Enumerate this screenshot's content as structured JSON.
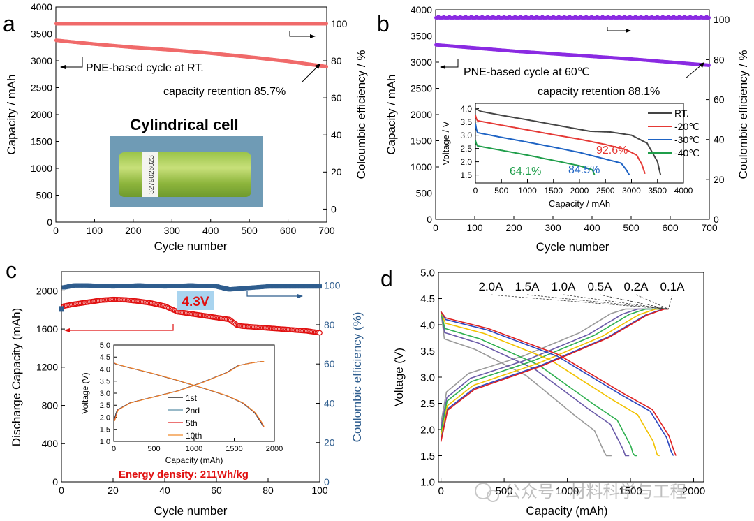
{
  "watermark": "公众号 · 材料科学与工程",
  "chart_data": [
    {
      "panel": "a",
      "type": "scatter",
      "xlabel": "Cycle number",
      "ylabel": "Capacity / mAh",
      "y2label": "Coloumbic efficiency / %",
      "xlim": [
        0,
        700
      ],
      "ylim": [
        0,
        4000
      ],
      "y2lim": [
        -7,
        109
      ],
      "xticks": [
        "0",
        "100",
        "200",
        "300",
        "400",
        "500",
        "600",
        "700"
      ],
      "yticks": [
        "0",
        "500",
        "1000",
        "1500",
        "2000",
        "2500",
        "3000",
        "3500",
        "4000"
      ],
      "y2ticks": [
        "0",
        "20",
        "40",
        "60",
        "80",
        "100"
      ],
      "series": [
        {
          "name": "Capacity",
          "axis": "left",
          "color": "#f06a6a",
          "x": [
            1,
            100,
            200,
            300,
            400,
            500,
            600,
            700
          ],
          "values": [
            3380,
            3310,
            3250,
            3200,
            3140,
            3070,
            2990,
            2890
          ]
        },
        {
          "name": "Coulombic efficiency",
          "axis": "right",
          "color": "#f06a6a",
          "x": [
            1,
            700
          ],
          "values": [
            100,
            100
          ]
        }
      ],
      "annotations": {
        "cycle_text": "PNE-based cycle at RT.",
        "retention_text": "capacity retention 85.7%",
        "inset_title": "Cylindrical cell",
        "cell_label": "3279026023"
      }
    },
    {
      "panel": "b",
      "type": "scatter",
      "xlabel": "Cycle number",
      "ylabel": "Capacity / mAh",
      "y2label": "Coulombic efficiency / %",
      "xlim": [
        0,
        700
      ],
      "ylim": [
        0,
        4000
      ],
      "y2lim": [
        0,
        105
      ],
      "xticks": [
        "0",
        "100",
        "200",
        "300",
        "400",
        "500",
        "600",
        "700"
      ],
      "yticks": [
        "0",
        "500",
        "1000",
        "1500",
        "2000",
        "2500",
        "3000",
        "3500",
        "4000"
      ],
      "y2ticks": [
        "0",
        "20",
        "40",
        "60",
        "80",
        "100"
      ],
      "series": [
        {
          "name": "Capacity",
          "axis": "left",
          "color": "#8a2be2",
          "x": [
            1,
            100,
            200,
            300,
            400,
            500,
            600,
            700
          ],
          "values": [
            3330,
            3270,
            3210,
            3160,
            3110,
            3060,
            3000,
            2940
          ]
        },
        {
          "name": "Coulombic efficiency",
          "axis": "right",
          "color": "#8a2be2",
          "x": [
            1,
            700
          ],
          "values": [
            101,
            101
          ]
        }
      ],
      "annotations": {
        "cycle_text": "PNE-based cycle at 60℃",
        "retention_text": "capacity retention 88.1%"
      },
      "inset": {
        "type": "line",
        "xlabel": "Capacity / mAh",
        "ylabel": "Voltage / V",
        "xlim": [
          0,
          4000
        ],
        "ylim": [
          1.2,
          4.2
        ],
        "xticks": [
          "0",
          "500",
          "1000",
          "1500",
          "2000",
          "2500",
          "3000",
          "3500",
          "4000"
        ],
        "yticks": [
          "1.5",
          "2.0",
          "2.5",
          "3.0",
          "3.5",
          "4.0"
        ],
        "series": [
          {
            "name": "RT.",
            "color": "#444444",
            "x": [
              0,
              100,
              500,
              1000,
              1500,
              2000,
              2200,
              2600,
              3000,
              3300,
              3500,
              3560
            ],
            "values": [
              4.0,
              3.9,
              3.75,
              3.58,
              3.4,
              3.22,
              3.15,
              3.12,
              3.0,
              2.7,
              2.0,
              1.5
            ]
          },
          {
            "name": "-20℃",
            "color": "#e53935",
            "x": [
              0,
              30,
              500,
              1000,
              1500,
              2000,
              2500,
              2900,
              3100,
              3200,
              3260
            ],
            "values": [
              3.75,
              3.55,
              3.38,
              3.2,
              3.02,
              2.85,
              2.65,
              2.45,
              2.25,
              1.9,
              1.55
            ]
          },
          {
            "name": "-30℃",
            "color": "#1e63c4",
            "x": [
              0,
              30,
              500,
              1000,
              1500,
              2000,
              2500,
              2800,
              2900,
              2960
            ],
            "values": [
              3.45,
              3.1,
              2.92,
              2.74,
              2.55,
              2.35,
              2.1,
              1.95,
              1.7,
              1.5
            ]
          },
          {
            "name": "-40℃",
            "color": "#1f9e4a",
            "x": [
              0,
              30,
              500,
              1000,
              1500,
              2000,
              2250,
              2290
            ],
            "values": [
              2.8,
              2.6,
              2.43,
              2.25,
              2.05,
              1.85,
              1.7,
              1.5
            ]
          }
        ],
        "labels": [
          "92.6%",
          "84.5%",
          "64.1%"
        ]
      }
    },
    {
      "panel": "c",
      "type": "scatter",
      "xlabel": "Cycle number",
      "ylabel": "Discharge Capacity (mAh)",
      "y2label": "Coulombic efficiency (%)",
      "xlim": [
        0,
        100
      ],
      "ylim": [
        0,
        2200
      ],
      "y2lim": [
        0,
        107
      ],
      "xticks": [
        "0",
        "20",
        "40",
        "60",
        "80",
        "100"
      ],
      "yticks": [
        "0",
        "400",
        "800",
        "1200",
        "1600",
        "2000"
      ],
      "y2ticks": [
        "0",
        "20",
        "40",
        "60",
        "80",
        "100"
      ],
      "series": [
        {
          "name": "Discharge capacity",
          "axis": "left",
          "color": "#e01010",
          "x": [
            1,
            5,
            10,
            15,
            20,
            25,
            30,
            35,
            40,
            45,
            50,
            55,
            60,
            65,
            68,
            70,
            75,
            80,
            85,
            90,
            95,
            100
          ],
          "values": [
            1840,
            1860,
            1880,
            1900,
            1910,
            1905,
            1890,
            1870,
            1840,
            1780,
            1760,
            1740,
            1720,
            1700,
            1640,
            1630,
            1620,
            1610,
            1600,
            1590,
            1580,
            1560
          ]
        },
        {
          "name": "Coulombic efficiency",
          "axis": "right",
          "color": "#2e5d8e",
          "x": [
            1,
            5,
            10,
            20,
            30,
            40,
            50,
            60,
            65,
            75,
            80,
            90,
            100
          ],
          "values": [
            99,
            100,
            100,
            99.5,
            100,
            99.5,
            100,
            99.5,
            98,
            99,
            99.5,
            99.5,
            99.5
          ]
        }
      ],
      "annotations": {
        "voltage_label": "4.3V",
        "energy_text": "Energy density: 211Wh/kg"
      },
      "inset": {
        "type": "line",
        "xlabel": "Capacity (mAh)",
        "ylabel": "Voltage (V)",
        "xlim": [
          0,
          2000
        ],
        "ylim": [
          1.0,
          5.0
        ],
        "xticks": [
          "0",
          "500",
          "1000",
          "1500",
          "2000"
        ],
        "yticks": [
          "1.0",
          "1.5",
          "2.0",
          "2.5",
          "3.0",
          "3.5",
          "4.0",
          "4.5",
          "5.0"
        ],
        "series": [
          {
            "name": "1st",
            "color": "#000000"
          },
          {
            "name": "2nd",
            "color": "#5b8fa8"
          },
          {
            "name": "5th",
            "color": "#e02020"
          },
          {
            "name": "10th",
            "color": "#f08a2a"
          }
        ],
        "charge_curve": {
          "x": [
            0,
            40,
            200,
            500,
            800,
            1100,
            1400,
            1550,
            1700,
            1800,
            1860
          ],
          "values": [
            1.85,
            2.3,
            2.6,
            2.85,
            3.1,
            3.45,
            3.85,
            4.15,
            4.25,
            4.3,
            4.32
          ]
        },
        "discharge_curve": {
          "x": [
            0,
            30,
            200,
            500,
            800,
            1100,
            1400,
            1600,
            1750,
            1830,
            1870
          ],
          "values": [
            4.25,
            4.2,
            4.05,
            3.8,
            3.52,
            3.22,
            2.9,
            2.6,
            2.2,
            1.8,
            1.55
          ]
        }
      }
    },
    {
      "panel": "d",
      "type": "line",
      "xlabel": "Capacity (mAh)",
      "ylabel": "Voltage (V)",
      "xlim": [
        -20,
        2080
      ],
      "ylim": [
        1.0,
        5.0
      ],
      "xticks": [
        "0",
        "500",
        "1000",
        "1500",
        "2000"
      ],
      "yticks": [
        "1.0",
        "1.5",
        "2.0",
        "2.5",
        "3.0",
        "3.5",
        "4.0",
        "4.5",
        "5.0"
      ],
      "rate_labels": [
        "2.0A",
        "1.5A",
        "1.0A",
        "0.5A",
        "0.2A",
        "0.1A"
      ],
      "series": [
        {
          "name": "2.0A",
          "color": "#9a9a9a",
          "end_capacity": 1350,
          "charge_full": 1460,
          "polarization": 0.42
        },
        {
          "name": "1.5A",
          "color": "#6a5aa8",
          "end_capacity": 1490,
          "charge_full": 1560,
          "polarization": 0.3
        },
        {
          "name": "1.0A",
          "color": "#2fb050",
          "end_capacity": 1550,
          "charge_full": 1620,
          "polarization": 0.22
        },
        {
          "name": "0.5A",
          "color": "#f2c200",
          "end_capacity": 1730,
          "charge_full": 1700,
          "polarization": 0.12
        },
        {
          "name": "0.2A",
          "color": "#2c48c0",
          "end_capacity": 1840,
          "charge_full": 1760,
          "polarization": 0.05
        },
        {
          "name": "0.1A",
          "color": "#e02020",
          "end_capacity": 1860,
          "charge_full": 1770,
          "polarization": 0.02
        }
      ]
    }
  ]
}
